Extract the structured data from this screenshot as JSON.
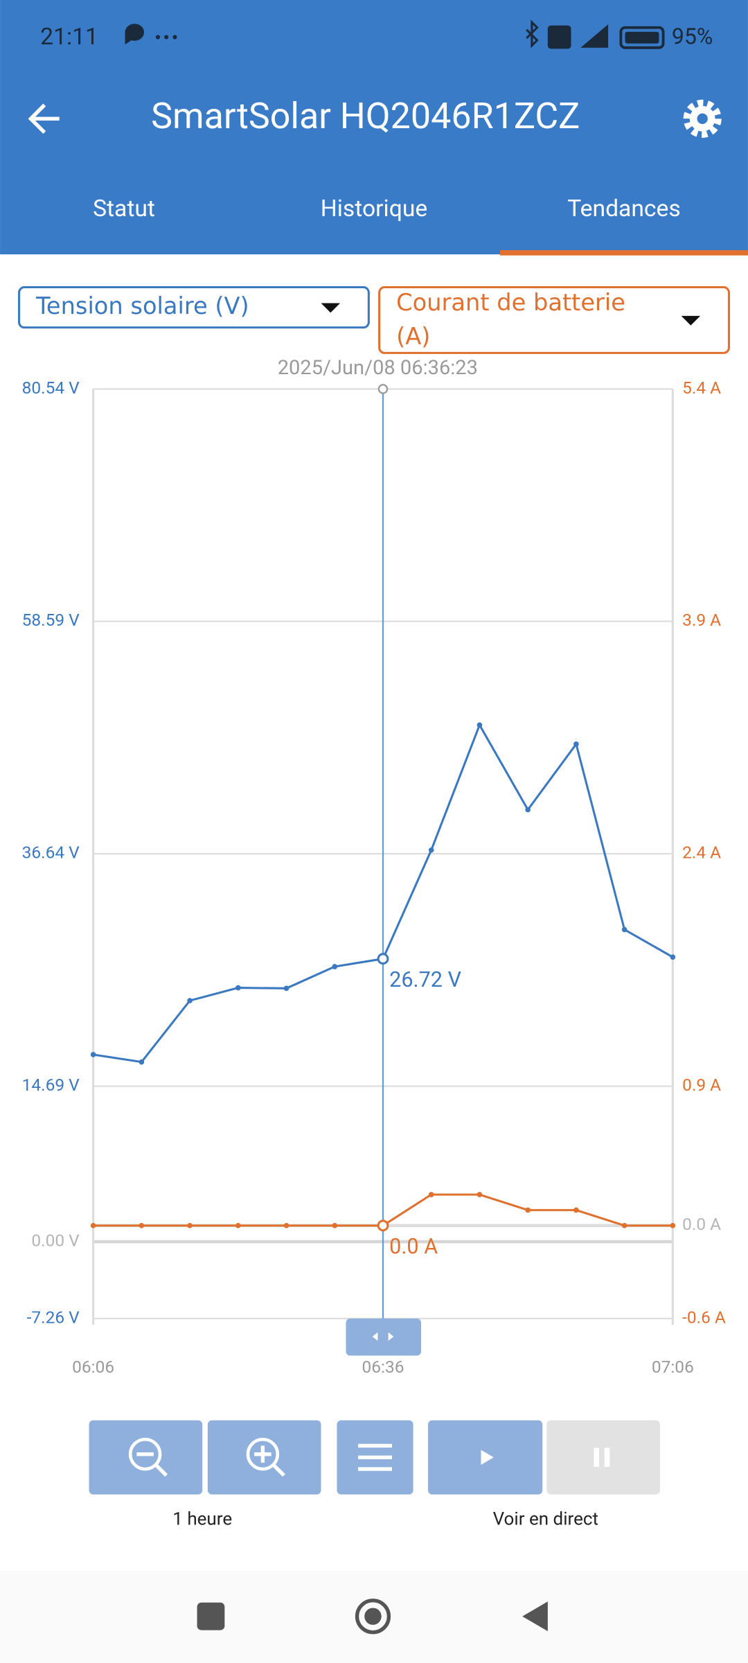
{
  "status_bar": {
    "time": "21:11",
    "battery": "95%"
  },
  "header": {
    "title": "SmartSolar HQ2046R1ZCZ"
  },
  "tabs": [
    "Statut",
    "Historique",
    "Tendances"
  ],
  "chart_data": {
    "type": "line",
    "cursor_label": "2025/Jun/08 06:36:23",
    "categories": [
      "06:06",
      null,
      null,
      null,
      null,
      null,
      "06:36",
      null,
      null,
      null,
      null,
      null,
      "07:06"
    ],
    "series": [
      {
        "name": "Tension solaire (V)",
        "color": "#3a78c0",
        "values": [
          17.67,
          16.97,
          22.77,
          23.98,
          23.93,
          25.98,
          26.72,
          36.99,
          48.8,
          40.8,
          47.0,
          29.48,
          26.88
        ],
        "value_labels": [
          null,
          null,
          null,
          null,
          null,
          null,
          "26.72 V",
          null,
          null,
          null,
          null,
          null,
          null
        ]
      },
      {
        "name": "Courant de batterie (A)",
        "color": "#e0702e",
        "axis": "y2",
        "values": [
          0,
          0,
          0,
          0,
          0,
          0,
          0,
          0.2,
          0.2,
          0.1,
          0.1,
          0,
          0
        ],
        "value_labels": [
          null,
          null,
          null,
          null,
          null,
          null,
          "0.0 A",
          null,
          null,
          null,
          null,
          null,
          null
        ]
      }
    ],
    "ylim": [
      -7.26,
      80.54
    ],
    "yticks": [
      {
        "value": -7.26,
        "label": "-7.26 V"
      },
      {
        "value": 0,
        "label": "0.00 V"
      },
      {
        "value": 14.69,
        "label": "14.69 V"
      },
      {
        "value": 36.64,
        "label": "36.64 V"
      },
      {
        "value": 58.59,
        "label": "58.59 V"
      },
      {
        "value": 80.54,
        "label": "80.54 V"
      }
    ],
    "y2lim": [
      -0.6,
      5.4
    ],
    "y2ticks": [
      {
        "value": -0.6,
        "label": "-0.6 A"
      },
      {
        "value": 0,
        "label": "0.0 A"
      },
      {
        "value": 0.9,
        "label": "0.9 A"
      },
      {
        "value": 2.4,
        "label": "2.4 A"
      },
      {
        "value": 3.9,
        "label": "3.9 A"
      },
      {
        "value": 5.4,
        "label": "5.4 A"
      }
    ],
    "grid": true
  },
  "controls": {
    "zoom_label": "1 heure",
    "live_label": "Voir en direct"
  }
}
